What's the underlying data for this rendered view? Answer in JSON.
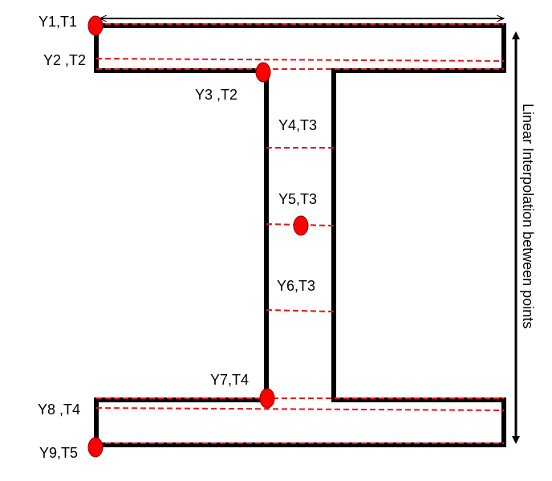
{
  "colors": {
    "outline": "#000000",
    "dashed_line": "#e8141a",
    "point": "#ff0000"
  },
  "points": [
    {
      "label": "Y1,T1",
      "marked": true
    },
    {
      "label": "Y2 ,T2",
      "marked": false
    },
    {
      "label": "Y3 ,T2",
      "marked": true
    },
    {
      "label": "Y4,T3",
      "marked": false
    },
    {
      "label": "Y5,T3",
      "marked": true
    },
    {
      "label": "Y6,T3",
      "marked": false
    },
    {
      "label": "Y7,T4",
      "marked": true
    },
    {
      "label": "Y8 ,T4",
      "marked": false
    },
    {
      "label": "Y9,T5",
      "marked": true
    }
  ],
  "dimension_label": "Linear Interpolation between points"
}
